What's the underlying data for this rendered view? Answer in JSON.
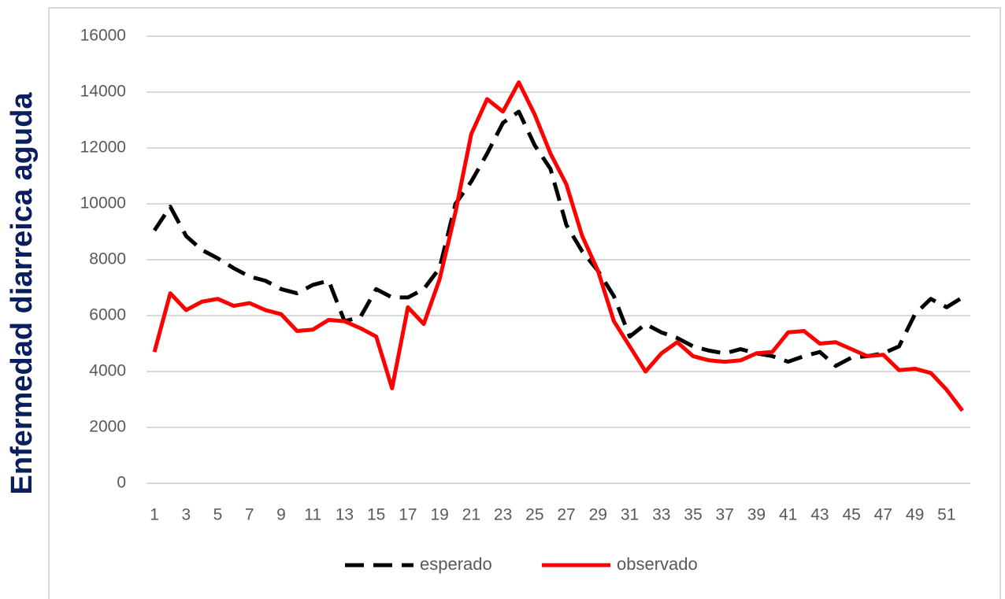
{
  "chart_data": {
    "type": "line",
    "y_axis_label": "Enfermedad diarreica aguda",
    "categories": [
      "1",
      null,
      "3",
      null,
      "5",
      null,
      "7",
      null,
      "9",
      null,
      "11",
      null,
      "13",
      null,
      "15",
      null,
      "17",
      null,
      "19",
      null,
      "21",
      null,
      "23",
      null,
      "25",
      null,
      "27",
      null,
      "29",
      null,
      "31",
      null,
      "33",
      null,
      "35",
      null,
      "37",
      null,
      "39",
      null,
      "41",
      null,
      "43",
      null,
      "45",
      null,
      "47",
      null,
      "49",
      null,
      "51",
      null
    ],
    "series": [
      {
        "name": "esperado",
        "color": "#000000",
        "style": "dashed",
        "values": [
          9050,
          9900,
          8850,
          8350,
          8050,
          7700,
          7400,
          7250,
          6950,
          6800,
          7100,
          7250,
          5800,
          5950,
          6950,
          6650,
          6650,
          6950,
          7700,
          10000,
          10800,
          11800,
          12900,
          13300,
          12100,
          11250,
          9250,
          8300,
          7600,
          6700,
          5250,
          5700,
          5400,
          5200,
          4900,
          4750,
          4650,
          4800,
          4650,
          4550,
          4350,
          4550,
          4700,
          4200,
          4500,
          4550,
          4650,
          4900,
          6050,
          6600,
          6300,
          6650
        ]
      },
      {
        "name": "observado",
        "color": "#ff0000",
        "style": "solid",
        "values": [
          4700,
          6800,
          6200,
          6500,
          6600,
          6350,
          6450,
          6200,
          6050,
          5450,
          5500,
          5850,
          5800,
          5550,
          5250,
          3400,
          6300,
          5700,
          7300,
          9700,
          12500,
          13750,
          13300,
          14350,
          13200,
          11800,
          10700,
          8850,
          7600,
          5800,
          4900,
          4000,
          4650,
          5050,
          4550,
          4400,
          4350,
          4400,
          4650,
          4700,
          5400,
          5450,
          5000,
          5050,
          4800,
          4550,
          4600,
          4050,
          4100,
          3950,
          3350,
          2600
        ]
      }
    ],
    "ylim": [
      0,
      16000
    ],
    "yticks": [
      0,
      2000,
      4000,
      6000,
      8000,
      10000,
      12000,
      14000,
      16000
    ],
    "grid": true,
    "legend": "bottom"
  }
}
